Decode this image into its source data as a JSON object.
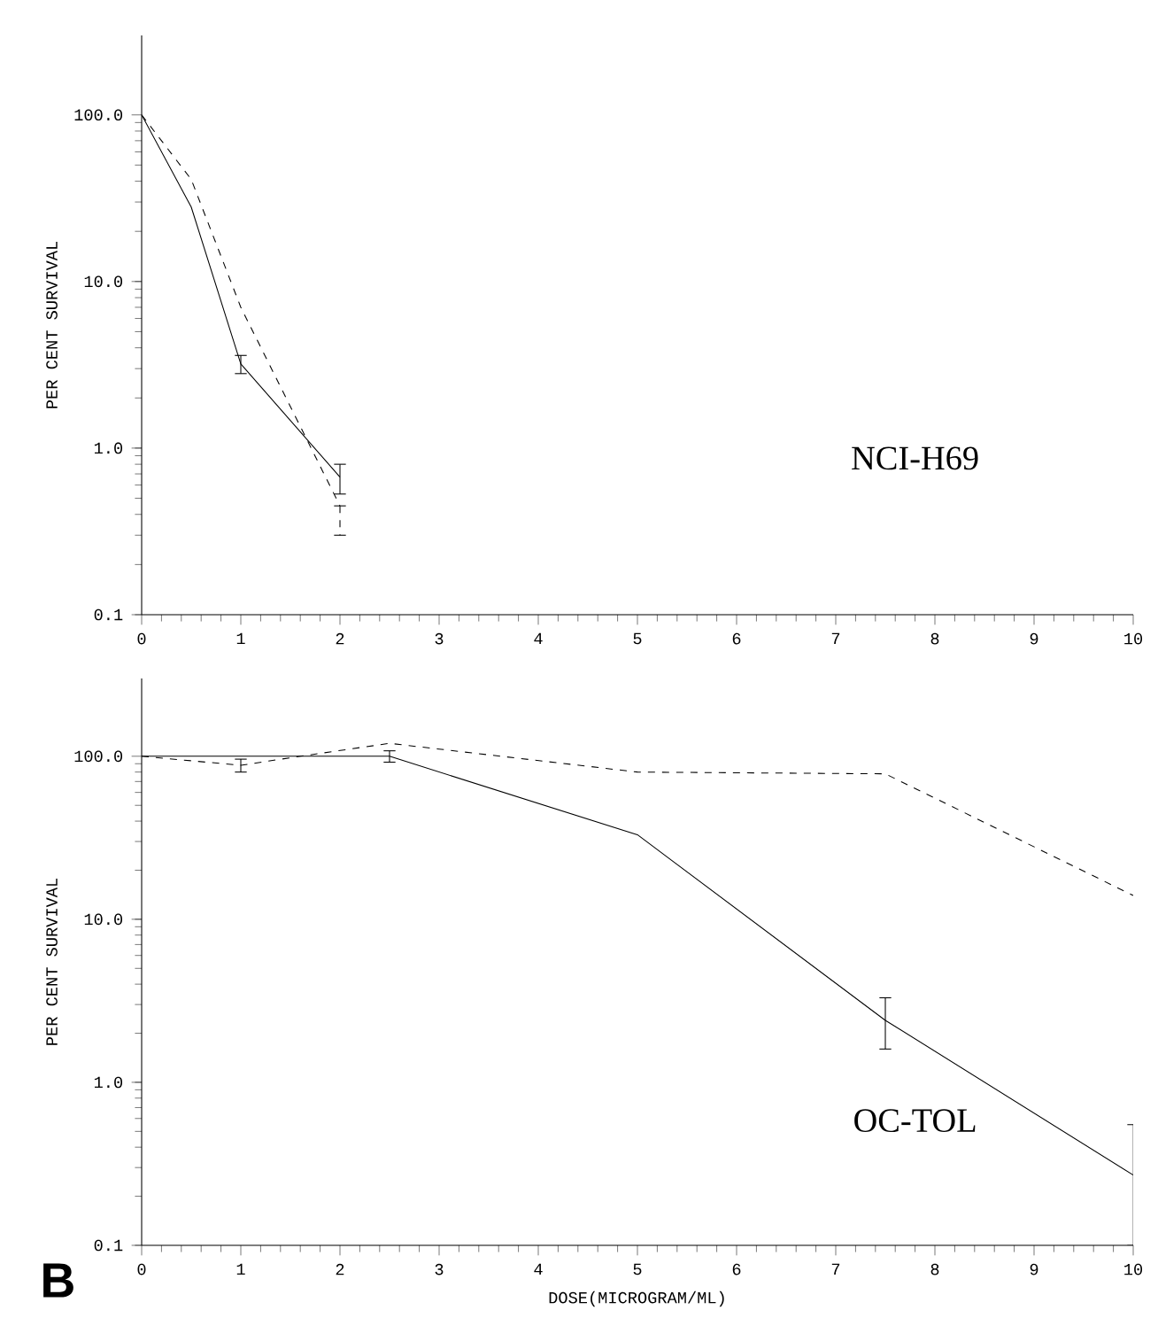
{
  "chart_data": [
    {
      "type": "line",
      "ylabel": "PER CENT SURVIVAL",
      "annotations": [
        "NCI-H69"
      ],
      "log": "y",
      "grid": false,
      "marker": "none",
      "xlim": [
        0,
        10
      ],
      "xticks": [
        0,
        1,
        2,
        3,
        4,
        5,
        6,
        7,
        8,
        9,
        10
      ],
      "ylim": [
        0.1,
        300
      ],
      "yticks": [
        {
          "value": 0.1,
          "label": "0.1"
        },
        {
          "value": 1,
          "label": "1.0"
        },
        {
          "value": 10,
          "label": "10.0"
        },
        {
          "value": 100,
          "label": "100.0"
        }
      ],
      "series": [
        {
          "color": "#000000",
          "line_style": "solid",
          "x": [
            0,
            0.5,
            1,
            2
          ],
          "values": [
            100,
            28,
            3.2,
            0.67
          ],
          "errors": [
            null,
            null,
            [
              2.8,
              3.6
            ],
            [
              0.53,
              0.8
            ]
          ]
        },
        {
          "color": "#000000",
          "line_style": "dashed",
          "x": [
            0,
            0.5,
            1,
            2
          ],
          "values": [
            100,
            41,
            7,
            0.45
          ],
          "errors": [
            null,
            null,
            null,
            [
              0.3,
              0.45
            ]
          ]
        }
      ]
    },
    {
      "type": "line",
      "xlabel": "DOSE(MICROGRAM/ML)",
      "ylabel": "PER CENT SURVIVAL",
      "annotations": [
        "OC-TOL",
        "B"
      ],
      "log": "y",
      "grid": false,
      "marker": "none",
      "xlim": [
        0,
        10
      ],
      "xticks": [
        0,
        1,
        2,
        3,
        4,
        5,
        6,
        7,
        8,
        9,
        10
      ],
      "ylim": [
        0.1,
        300
      ],
      "yticks": [
        {
          "value": 0.1,
          "label": "0.1"
        },
        {
          "value": 1,
          "label": "1.0"
        },
        {
          "value": 10,
          "label": "10.0"
        },
        {
          "value": 100,
          "label": "100.0"
        }
      ],
      "series": [
        {
          "color": "#000000",
          "line_style": "solid",
          "x": [
            0,
            1,
            2.5,
            5,
            7.5,
            10
          ],
          "values": [
            100,
            100,
            100,
            33,
            2.4,
            0.27
          ],
          "errors": [
            null,
            null,
            [
              92,
              108
            ],
            null,
            [
              1.6,
              3.3
            ],
            [
              0.1,
              0.55
            ]
          ]
        },
        {
          "color": "#000000",
          "line_style": "dashed",
          "x": [
            0,
            1,
            1.6,
            2.5,
            5,
            7.5,
            10
          ],
          "values": [
            100,
            88,
            100,
            120,
            80,
            78,
            14
          ],
          "errors": [
            null,
            [
              80,
              96
            ],
            null,
            null,
            null,
            null,
            null
          ]
        }
      ]
    }
  ]
}
